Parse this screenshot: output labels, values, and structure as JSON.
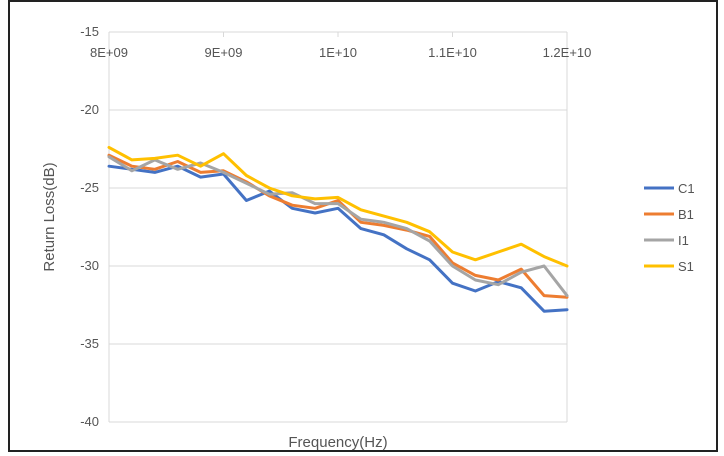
{
  "chart_data": {
    "type": "line",
    "xlabel": "Frequency(Hz)",
    "ylabel": "Return Loss(dB)",
    "xlim": [
      8000000000,
      12000000000
    ],
    "ylim": [
      -40,
      -15
    ],
    "x_ticks": [
      "8E+09",
      "9E+09",
      "1E+10",
      "1.1E+10",
      "1.2E+10"
    ],
    "y_ticks": [
      "-15",
      "-20",
      "-25",
      "-30",
      "-35",
      "-40"
    ],
    "x_tick_values": [
      8000000000,
      9000000000,
      10000000000,
      11000000000,
      12000000000
    ],
    "y_tick_values": [
      -15,
      -20,
      -25,
      -30,
      -35,
      -40
    ],
    "x_axis_position": "top",
    "grid": "horizontal",
    "legend_position": "right",
    "x": [
      8000000000,
      8200000000,
      8400000000,
      8600000000,
      8800000000,
      9000000000,
      9200000000,
      9400000000,
      9600000000,
      9800000000,
      10000000000,
      10200000000,
      10400000000,
      10600000000,
      10800000000,
      11000000000,
      11200000000,
      11400000000,
      11600000000,
      11800000000,
      12000000000
    ],
    "series": [
      {
        "name": "C1",
        "color": "#4472C4",
        "values": [
          -23.6,
          -23.8,
          -24.0,
          -23.6,
          -24.3,
          -24.1,
          -25.8,
          -25.2,
          -26.3,
          -26.6,
          -26.3,
          -27.6,
          -28.0,
          -28.9,
          -29.6,
          -31.1,
          -31.6,
          -31.0,
          -31.4,
          -32.9,
          -32.8
        ]
      },
      {
        "name": "B1",
        "color": "#ED7D31",
        "values": [
          -22.9,
          -23.6,
          -23.8,
          -23.3,
          -24.0,
          -23.9,
          -24.6,
          -25.5,
          -26.1,
          -26.3,
          -25.8,
          -27.2,
          -27.4,
          -27.7,
          -28.1,
          -29.8,
          -30.6,
          -30.9,
          -30.2,
          -31.9,
          -32.0
        ]
      },
      {
        "name": "I1",
        "color": "#A5A5A5",
        "values": [
          -23.0,
          -23.9,
          -23.2,
          -23.8,
          -23.4,
          -24.0,
          -24.7,
          -25.4,
          -25.3,
          -26.0,
          -26.0,
          -27.0,
          -27.2,
          -27.6,
          -28.4,
          -30.0,
          -30.9,
          -31.2,
          -30.4,
          -30.0,
          -31.9
        ]
      },
      {
        "name": "S1",
        "color": "#FFC000",
        "values": [
          -22.4,
          -23.2,
          -23.1,
          -22.9,
          -23.6,
          -22.8,
          -24.2,
          -25.0,
          -25.5,
          -25.7,
          -25.6,
          -26.4,
          -26.8,
          -27.2,
          -27.8,
          -29.1,
          -29.6,
          -29.1,
          -28.6,
          -29.4,
          -30.0
        ]
      }
    ]
  }
}
